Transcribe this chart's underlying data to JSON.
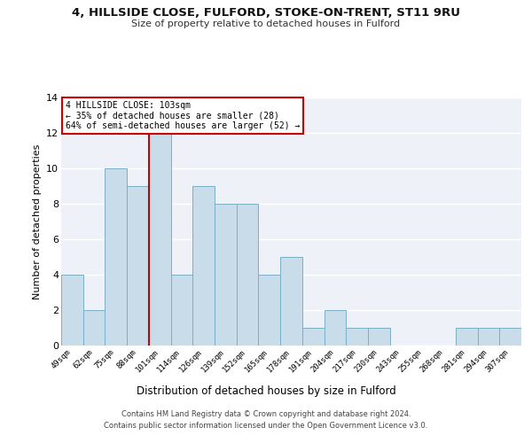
{
  "title1": "4, HILLSIDE CLOSE, FULFORD, STOKE-ON-TRENT, ST11 9RU",
  "title2": "Size of property relative to detached houses in Fulford",
  "xlabel": "Distribution of detached houses by size in Fulford",
  "ylabel": "Number of detached properties",
  "categories": [
    "49sqm",
    "62sqm",
    "75sqm",
    "88sqm",
    "101sqm",
    "114sqm",
    "126sqm",
    "139sqm",
    "152sqm",
    "165sqm",
    "178sqm",
    "191sqm",
    "204sqm",
    "217sqm",
    "230sqm",
    "243sqm",
    "255sqm",
    "268sqm",
    "281sqm",
    "294sqm",
    "307sqm"
  ],
  "values": [
    4,
    2,
    10,
    9,
    12,
    4,
    9,
    8,
    8,
    4,
    5,
    1,
    2,
    1,
    1,
    0,
    0,
    0,
    1,
    1,
    1
  ],
  "bar_color": "#c9dcea",
  "bar_edge_color": "#7aaec8",
  "ref_line_index": 4,
  "ref_line_color": "#cc0000",
  "annotation_line1": "4 HILLSIDE CLOSE: 103sqm",
  "annotation_line2": "← 35% of detached houses are smaller (28)",
  "annotation_line3": "64% of semi-detached houses are larger (52) →",
  "annotation_box_color": "#cc0000",
  "ylim": [
    0,
    14
  ],
  "yticks": [
    0,
    2,
    4,
    6,
    8,
    10,
    12,
    14
  ],
  "footer_line1": "Contains HM Land Registry data © Crown copyright and database right 2024.",
  "footer_line2": "Contains public sector information licensed under the Open Government Licence v3.0.",
  "bg_color": "#eef2f8",
  "grid_color": "#ffffff"
}
